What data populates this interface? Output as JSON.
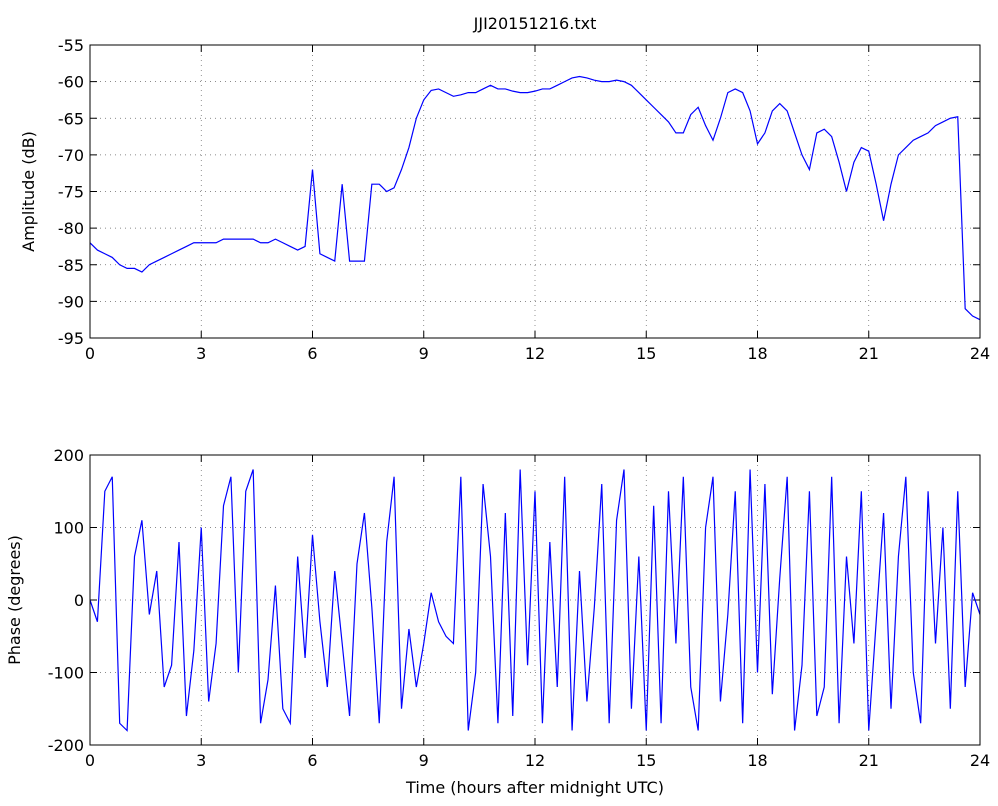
{
  "chart_data": [
    {
      "type": "line",
      "title": "JJI20151216.txt",
      "ylabel": "Amplitude (dB)",
      "x": [
        0,
        0.2,
        0.4,
        0.6,
        0.8,
        1,
        1.2,
        1.4,
        1.6,
        1.8,
        2,
        2.2,
        2.4,
        2.6,
        2.8,
        3,
        3.2,
        3.4,
        3.6,
        3.8,
        4,
        4.2,
        4.4,
        4.6,
        4.8,
        5,
        5.2,
        5.4,
        5.6,
        5.8,
        6,
        6.2,
        6.4,
        6.6,
        6.8,
        7,
        7.2,
        7.4,
        7.6,
        7.8,
        8,
        8.2,
        8.4,
        8.6,
        8.8,
        9,
        9.2,
        9.4,
        9.6,
        9.8,
        10,
        10.2,
        10.4,
        10.6,
        10.8,
        11,
        11.2,
        11.4,
        11.6,
        11.8,
        12,
        12.2,
        12.4,
        12.6,
        12.8,
        13,
        13.2,
        13.4,
        13.6,
        13.8,
        14,
        14.2,
        14.4,
        14.6,
        14.8,
        15,
        15.2,
        15.4,
        15.6,
        15.8,
        16,
        16.2,
        16.4,
        16.6,
        16.8,
        17,
        17.2,
        17.4,
        17.6,
        17.8,
        18,
        18.2,
        18.4,
        18.6,
        18.8,
        19,
        19.2,
        19.4,
        19.6,
        19.8,
        20,
        20.2,
        20.4,
        20.6,
        20.8,
        21,
        21.2,
        21.4,
        21.6,
        21.8,
        22,
        22.2,
        22.4,
        22.6,
        22.8,
        23,
        23.2,
        23.4,
        23.6,
        23.8,
        24
      ],
      "values": [
        -82,
        -83,
        -83.5,
        -84,
        -85,
        -85.5,
        -85.5,
        -86,
        -85,
        -84.5,
        -84,
        -83.5,
        -83,
        -82.5,
        -82,
        -82,
        -82,
        -82,
        -81.5,
        -81.5,
        -81.5,
        -81.5,
        -81.5,
        -82,
        -82,
        -81.5,
        -82,
        -82.5,
        -83,
        -82.5,
        -72,
        -83.5,
        -84,
        -84.5,
        -74,
        -84.5,
        -84.5,
        -84.5,
        -74,
        -74,
        -75,
        -74.5,
        -72,
        -69,
        -65,
        -62.5,
        -61.2,
        -61,
        -61.5,
        -62,
        -61.8,
        -61.5,
        -61.5,
        -61,
        -60.5,
        -61,
        -61,
        -61.3,
        -61.5,
        -61.5,
        -61.3,
        -61,
        -61,
        -60.5,
        -60,
        -59.5,
        -59.3,
        -59.5,
        -59.8,
        -60,
        -60,
        -59.8,
        -60,
        -60.5,
        -61.5,
        -62.5,
        -63.5,
        -64.5,
        -65.5,
        -67,
        -67,
        -64.5,
        -63.5,
        -66,
        -68,
        -65,
        -61.5,
        -61,
        -61.5,
        -64,
        -68.5,
        -67,
        -64,
        -63,
        -64,
        -67,
        -70,
        -72,
        -67,
        -66.5,
        -67.5,
        -71,
        -75,
        -71,
        -69,
        -69.5,
        -74,
        -79,
        -74,
        -70,
        -69,
        -68,
        -67.5,
        -67,
        -66,
        -65.5,
        -65,
        -64.8,
        -91,
        -92,
        -92.5
      ],
      "color": "#0000ff",
      "grid": true,
      "xlim": [
        0,
        24
      ],
      "xticks": [
        0,
        3,
        6,
        9,
        12,
        15,
        18,
        21,
        24
      ],
      "ylim": [
        -95,
        -55
      ],
      "yticks": [
        -95,
        -90,
        -85,
        -80,
        -75,
        -70,
        -65,
        -60,
        -55
      ]
    },
    {
      "type": "line",
      "ylabel": "Phase (degrees)",
      "xlabel": "Time (hours after midnight UTC)",
      "x": [
        0,
        0.2,
        0.4,
        0.6,
        0.8,
        1,
        1.2,
        1.4,
        1.6,
        1.8,
        2,
        2.2,
        2.4,
        2.6,
        2.8,
        3,
        3.2,
        3.4,
        3.6,
        3.8,
        4,
        4.2,
        4.4,
        4.6,
        4.8,
        5,
        5.2,
        5.4,
        5.6,
        5.8,
        6,
        6.2,
        6.4,
        6.6,
        6.8,
        7,
        7.2,
        7.4,
        7.6,
        7.8,
        8,
        8.2,
        8.4,
        8.6,
        8.8,
        9,
        9.2,
        9.4,
        9.6,
        9.8,
        10,
        10.2,
        10.4,
        10.6,
        10.8,
        11,
        11.2,
        11.4,
        11.6,
        11.8,
        12,
        12.2,
        12.4,
        12.6,
        12.8,
        13,
        13.2,
        13.4,
        13.6,
        13.8,
        14,
        14.2,
        14.4,
        14.6,
        14.8,
        15,
        15.2,
        15.4,
        15.6,
        15.8,
        16,
        16.2,
        16.4,
        16.6,
        16.8,
        17,
        17.2,
        17.4,
        17.6,
        17.8,
        18,
        18.2,
        18.4,
        18.6,
        18.8,
        19,
        19.2,
        19.4,
        19.6,
        19.8,
        20,
        20.2,
        20.4,
        20.6,
        20.8,
        21,
        21.2,
        21.4,
        21.6,
        21.8,
        22,
        22.2,
        22.4,
        22.6,
        22.8,
        23,
        23.2,
        23.4,
        23.6,
        23.8,
        24
      ],
      "values": [
        0,
        -30,
        150,
        170,
        -170,
        -180,
        60,
        110,
        -20,
        40,
        -120,
        -90,
        80,
        -160,
        -70,
        100,
        -140,
        -60,
        130,
        170,
        -100,
        150,
        180,
        -170,
        -110,
        20,
        -150,
        -170,
        60,
        -80,
        90,
        -30,
        -120,
        40,
        -60,
        -160,
        50,
        120,
        -10,
        -170,
        80,
        170,
        -150,
        -40,
        -120,
        -60,
        10,
        -30,
        -50,
        -60,
        170,
        -180,
        -100,
        160,
        60,
        -170,
        120,
        -160,
        180,
        -90,
        150,
        -170,
        80,
        -120,
        170,
        -180,
        40,
        -140,
        -10,
        160,
        -170,
        110,
        180,
        -150,
        60,
        -180,
        130,
        -170,
        150,
        -60,
        170,
        -120,
        -180,
        100,
        170,
        -140,
        -20,
        150,
        -170,
        180,
        -100,
        160,
        -130,
        30,
        170,
        -180,
        -90,
        150,
        -160,
        -120,
        170,
        -170,
        60,
        -60,
        150,
        -180,
        -30,
        120,
        -150,
        60,
        170,
        -100,
        -170,
        150,
        -60,
        100,
        -150,
        150,
        -120,
        10,
        -20
      ],
      "color": "#0000ff",
      "grid": true,
      "xlim": [
        0,
        24
      ],
      "xticks": [
        0,
        3,
        6,
        9,
        12,
        15,
        18,
        21,
        24
      ],
      "ylim": [
        -200,
        200
      ],
      "yticks": [
        -200,
        -100,
        0,
        100,
        200
      ]
    }
  ]
}
